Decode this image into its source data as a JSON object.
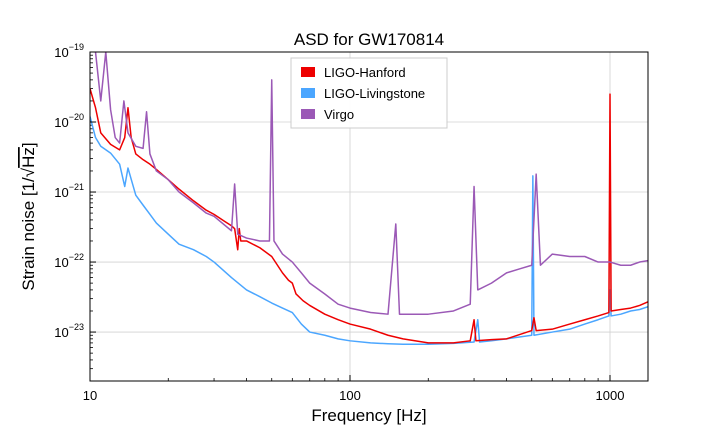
{
  "chart_data": {
    "type": "line",
    "title": "ASD for GW170814",
    "xlabel": "Frequency [Hz]",
    "ylabel_prefix": "Strain noise [1/",
    "ylabel_radical": "Hz",
    "ylabel_suffix": "]",
    "xscale": "log",
    "yscale": "log",
    "xlim": [
      10,
      1400
    ],
    "ylim": [
      2e-24,
      1e-19
    ],
    "grid": true,
    "legend_position": "top-center",
    "x_ticks": [
      {
        "value": 10,
        "label": "10"
      },
      {
        "value": 100,
        "label": "100"
      },
      {
        "value": 1000,
        "label": "1000"
      }
    ],
    "y_ticks": [
      {
        "value": 1e-23,
        "base": "10",
        "exp": "−23"
      },
      {
        "value": 1e-22,
        "base": "10",
        "exp": "−22"
      },
      {
        "value": 1e-21,
        "base": "10",
        "exp": "−21"
      },
      {
        "value": 1e-20,
        "base": "10",
        "exp": "−20"
      },
      {
        "value": 1e-19,
        "base": "10",
        "exp": "−19"
      }
    ],
    "series": [
      {
        "name": "LIGO-Hanford",
        "color": "#ee0000",
        "points": [
          [
            10,
            3e-20
          ],
          [
            10.5,
            1.6e-20
          ],
          [
            11,
            7e-21
          ],
          [
            12,
            4.8e-21
          ],
          [
            13,
            4e-21
          ],
          [
            13.6,
            6e-21
          ],
          [
            14,
            1.6e-20
          ],
          [
            14.4,
            6e-21
          ],
          [
            15,
            3.5e-21
          ],
          [
            16,
            2.9e-21
          ],
          [
            17,
            2.5e-21
          ],
          [
            18,
            2.1e-21
          ],
          [
            20,
            1.5e-21
          ],
          [
            22,
            1.1e-21
          ],
          [
            25,
            7.5e-22
          ],
          [
            28,
            5.5e-22
          ],
          [
            30,
            4.8e-22
          ],
          [
            33,
            3.8e-22
          ],
          [
            35,
            3.3e-22
          ],
          [
            36,
            3e-22
          ],
          [
            37,
            1.5e-22
          ],
          [
            37.5,
            3e-22
          ],
          [
            38,
            2e-22
          ],
          [
            40,
            2e-22
          ],
          [
            45,
            1.6e-22
          ],
          [
            50,
            1.2e-22
          ],
          [
            55,
            7e-23
          ],
          [
            58,
            5.5e-23
          ],
          [
            60,
            5e-23
          ],
          [
            62,
            3.5e-23
          ],
          [
            66,
            2.8e-23
          ],
          [
            70,
            2.4e-23
          ],
          [
            80,
            1.8e-23
          ],
          [
            90,
            1.5e-23
          ],
          [
            100,
            1.3e-23
          ],
          [
            120,
            1.1e-23
          ],
          [
            140,
            9e-24
          ],
          [
            160,
            8e-24
          ],
          [
            200,
            7e-24
          ],
          [
            250,
            7e-24
          ],
          [
            290,
            7.5e-24
          ],
          [
            300,
            1.5e-23
          ],
          [
            305,
            7.5e-24
          ],
          [
            350,
            7.8e-24
          ],
          [
            400,
            8e-24
          ],
          [
            500,
            1.05e-23
          ],
          [
            510,
            1.6e-23
          ],
          [
            520,
            1.05e-23
          ],
          [
            600,
            1.1e-23
          ],
          [
            700,
            1.3e-23
          ],
          [
            800,
            1.5e-23
          ],
          [
            900,
            1.7e-23
          ],
          [
            990,
            1.9e-23
          ],
          [
            1000,
            2.5e-20
          ],
          [
            1010,
            2e-23
          ],
          [
            1100,
            2.1e-23
          ],
          [
            1200,
            2.2e-23
          ],
          [
            1300,
            2.4e-23
          ],
          [
            1400,
            2.7e-23
          ]
        ]
      },
      {
        "name": "LIGO-Livingstone",
        "color": "#4ba6ff",
        "points": [
          [
            10,
            1.2e-20
          ],
          [
            10.5,
            6e-21
          ],
          [
            11,
            4.5e-21
          ],
          [
            12,
            3.6e-21
          ],
          [
            13,
            2.5e-21
          ],
          [
            13.6,
            1.2e-21
          ],
          [
            14,
            2.2e-21
          ],
          [
            15,
            9e-22
          ],
          [
            16,
            6.5e-22
          ],
          [
            17,
            4.8e-22
          ],
          [
            18,
            3.6e-22
          ],
          [
            20,
            2.5e-22
          ],
          [
            22,
            1.8e-22
          ],
          [
            25,
            1.5e-22
          ],
          [
            28,
            1.2e-22
          ],
          [
            30,
            1e-22
          ],
          [
            35,
            6e-23
          ],
          [
            40,
            4e-23
          ],
          [
            45,
            3.2e-23
          ],
          [
            50,
            2.6e-23
          ],
          [
            55,
            2.2e-23
          ],
          [
            60,
            1.9e-23
          ],
          [
            65,
            1.3e-23
          ],
          [
            70,
            1e-23
          ],
          [
            80,
            9e-24
          ],
          [
            90,
            8e-24
          ],
          [
            100,
            7.5e-24
          ],
          [
            120,
            7e-24
          ],
          [
            140,
            6.8e-24
          ],
          [
            160,
            6.7e-24
          ],
          [
            200,
            6.7e-24
          ],
          [
            250,
            6.9e-24
          ],
          [
            300,
            7.2e-24
          ],
          [
            310,
            1.5e-23
          ],
          [
            315,
            7.2e-24
          ],
          [
            350,
            7.5e-24
          ],
          [
            400,
            8e-24
          ],
          [
            500,
            9e-24
          ],
          [
            505,
            1.7e-21
          ],
          [
            510,
            9e-24
          ],
          [
            600,
            1e-23
          ],
          [
            700,
            1.1e-23
          ],
          [
            800,
            1.3e-23
          ],
          [
            900,
            1.5e-23
          ],
          [
            990,
            1.7e-23
          ],
          [
            1000,
            4e-23
          ],
          [
            1010,
            1.7e-23
          ],
          [
            1100,
            1.8e-23
          ],
          [
            1200,
            2e-23
          ],
          [
            1300,
            2.1e-23
          ],
          [
            1400,
            2.3e-23
          ]
        ]
      },
      {
        "name": "Virgo",
        "color": "#9b59b6",
        "points": [
          [
            10.5,
            1e-19
          ],
          [
            11,
            2e-20
          ],
          [
            11.5,
            1e-19
          ],
          [
            12,
            1.5e-20
          ],
          [
            12.5,
            6e-21
          ],
          [
            13,
            5e-21
          ],
          [
            13.5,
            2e-20
          ],
          [
            14,
            7e-21
          ],
          [
            15,
            4.5e-21
          ],
          [
            16,
            4.2e-21
          ],
          [
            16.5,
            1.4e-20
          ],
          [
            17,
            3.5e-21
          ],
          [
            18,
            2e-21
          ],
          [
            20,
            1.5e-21
          ],
          [
            22,
            1e-21
          ],
          [
            25,
            7e-22
          ],
          [
            28,
            5e-22
          ],
          [
            30,
            4.5e-22
          ],
          [
            35,
            2.8e-22
          ],
          [
            36,
            1.3e-21
          ],
          [
            37,
            2.5e-22
          ],
          [
            40,
            2.2e-22
          ],
          [
            45,
            2e-22
          ],
          [
            49,
            2e-22
          ],
          [
            50,
            4e-20
          ],
          [
            51,
            2e-22
          ],
          [
            55,
            1.3e-22
          ],
          [
            60,
            1e-22
          ],
          [
            65,
            7e-23
          ],
          [
            70,
            5e-23
          ],
          [
            80,
            3.5e-23
          ],
          [
            90,
            2.5e-23
          ],
          [
            100,
            2.2e-23
          ],
          [
            120,
            1.9e-23
          ],
          [
            140,
            1.8e-23
          ],
          [
            150,
            3.5e-22
          ],
          [
            155,
            1.8e-23
          ],
          [
            200,
            1.8e-23
          ],
          [
            250,
            2e-23
          ],
          [
            290,
            2.5e-23
          ],
          [
            300,
            1.2e-21
          ],
          [
            310,
            4e-23
          ],
          [
            350,
            5e-23
          ],
          [
            400,
            7e-23
          ],
          [
            450,
            8e-23
          ],
          [
            500,
            9e-23
          ],
          [
            520,
            1.8e-21
          ],
          [
            540,
            9e-23
          ],
          [
            600,
            1.3e-22
          ],
          [
            700,
            1.2e-22
          ],
          [
            800,
            1.2e-22
          ],
          [
            900,
            1e-22
          ],
          [
            1000,
            1e-22
          ],
          [
            1100,
            9e-23
          ],
          [
            1200,
            9e-23
          ],
          [
            1300,
            1e-22
          ],
          [
            1400,
            1.05e-22
          ]
        ]
      }
    ]
  }
}
